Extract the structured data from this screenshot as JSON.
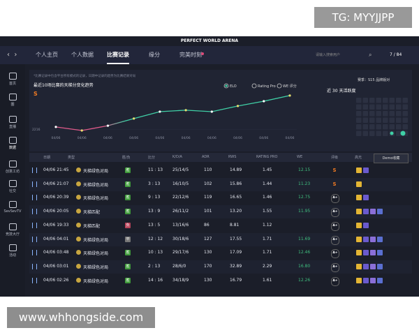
{
  "watermark": "TG: MYYJJPP",
  "footer": "www.whhongside.com",
  "app": {
    "title": "PERFECT WORLD ARENA",
    "tabs": [
      "个人主页",
      "个人数据",
      "比赛记录",
      "缘分",
      "完美时刻"
    ],
    "search_placeholder": "请输入搜索用户",
    "counter": "7 / 84"
  },
  "sidebar": [
    "首页",
    "圈",
    "直播",
    "数据",
    "创意工坊",
    "社交",
    "SevSevTV",
    "竞技大厅",
    "活动"
  ],
  "trend": {
    "note": "*比赛记录中包含平台所有模式的记录，日期中记录的趋势为比赛结果对局",
    "title": "最近10场比赛的天梯分变化趋势",
    "legend": [
      "ELO",
      "Rating Pro",
      "WE 评分"
    ],
    "season": "赛季：S15 品牌版对",
    "activity_title": "近 30 天活跃度",
    "x_labels": [
      "04/06",
      "04/06",
      "04/06",
      "04/06",
      "04/06",
      "04/06",
      "04/06",
      "04/06",
      "04/06",
      "04/06"
    ],
    "ylim": [
      2200,
      2400
    ],
    "yticks": [
      2216
    ],
    "elo": [
      2227,
      2210,
      2233,
      2267,
      2300,
      2307,
      2300,
      2327,
      2350,
      2377
    ]
  },
  "table": {
    "columns": [
      "日期",
      "类型",
      "胜/负",
      "比分",
      "K/D/A",
      "ADR",
      "RWS",
      "RATING PRO",
      "WE",
      "评级",
      "高光"
    ],
    "rows": [
      {
        "date": "04/06 21:45",
        "type": "天梯绿色对局",
        "result": "胜",
        "score": "11 : 13",
        "kda": "25/14/5",
        "adr": "110",
        "rws": "14.89",
        "rating": "1.45",
        "we": "12.15",
        "grade": "S"
      },
      {
        "date": "04/06 21:07",
        "type": "天梯绿色对局",
        "result": "胜",
        "score": "3 : 13",
        "kda": "16/10/5",
        "adr": "102",
        "rws": "15.86",
        "rating": "1.44",
        "we": "11.23",
        "grade": "S"
      },
      {
        "date": "04/06 20:39",
        "type": "天梯绿色对局",
        "result": "胜",
        "score": "9 : 13",
        "kda": "22/12/6",
        "adr": "119",
        "rws": "16.65",
        "rating": "1.46",
        "we": "12.75",
        "grade": "A+"
      },
      {
        "date": "04/06 20:05",
        "type": "天梯匹配",
        "result": "胜",
        "score": "13 : 9",
        "kda": "26/11/2",
        "adr": "101",
        "rws": "13.20",
        "rating": "1.55",
        "we": "11.95",
        "grade": "A+"
      },
      {
        "date": "04/06 19:33",
        "type": "天梯匹配",
        "result": "负",
        "score": "13 : 5",
        "kda": "13/16/6",
        "adr": "86",
        "rws": "8.81",
        "rating": "1.12",
        "grade": "A+"
      },
      {
        "date": "04/06 04:01",
        "type": "天梯绿色对局",
        "result": "平",
        "score": "12 : 12",
        "kda": "30/18/6",
        "adr": "127",
        "rws": "17.55",
        "rating": "1.71",
        "we": "11.69",
        "grade": "A+"
      },
      {
        "date": "04/06 03:48",
        "type": "天梯绿色对局",
        "result": "胜",
        "score": "10 : 13",
        "kda": "29/17/6",
        "adr": "130",
        "rws": "17.09",
        "rating": "1.71",
        "we": "12.46",
        "grade": "A+"
      },
      {
        "date": "04/06 03:01",
        "type": "天梯绿色对局",
        "result": "胜",
        "score": "2 : 13",
        "kda": "28/6/0",
        "adr": "170",
        "rws": "32.89",
        "rating": "2.29",
        "we": "16.80",
        "grade": "A+"
      },
      {
        "date": "04/06 02:26",
        "type": "天梯绿色对局",
        "result": "胜",
        "score": "14 : 16",
        "kda": "34/18/9",
        "adr": "130",
        "rws": "16.79",
        "rating": "1.61",
        "we": "12.26",
        "grade": "A+"
      }
    ]
  },
  "tooltip": "Demo收藏"
}
